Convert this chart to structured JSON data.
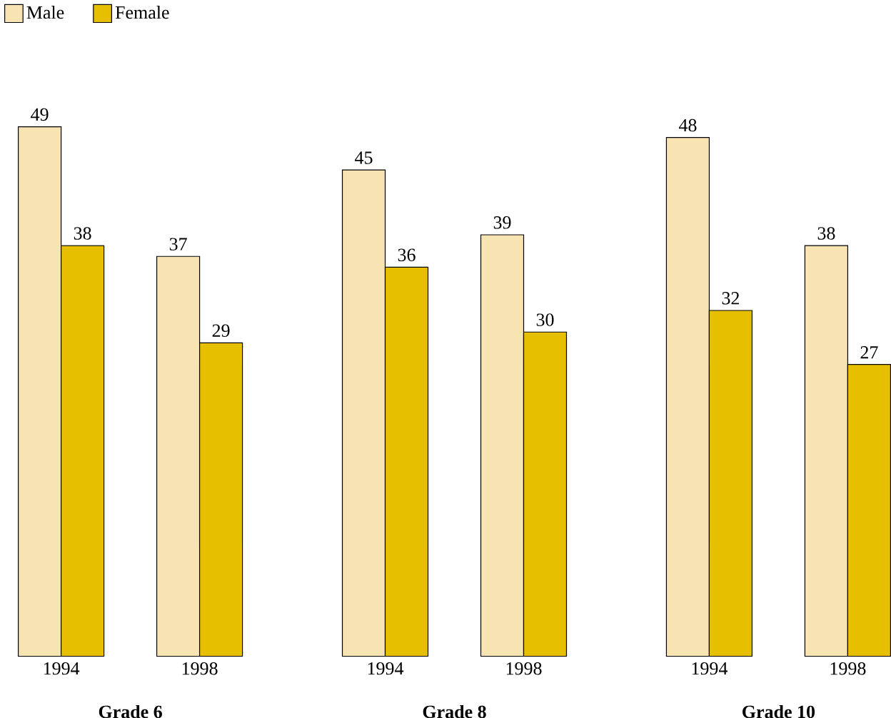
{
  "chart_data": {
    "type": "bar",
    "categories": [
      "1994",
      "1998",
      "1994",
      "1998",
      "1994",
      "1998"
    ],
    "series": [
      {
        "name": "Male",
        "color": "#f8e4b2",
        "values": [
          49,
          37,
          45,
          39,
          48,
          38
        ]
      },
      {
        "name": "Female",
        "color": "#e6c000",
        "values": [
          38,
          29,
          36,
          30,
          32,
          27
        ]
      }
    ],
    "data_labels": true,
    "legend": "top left",
    "annotations": [
      "Grade 6",
      "Grade 8",
      "Grade 10"
    ]
  }
}
